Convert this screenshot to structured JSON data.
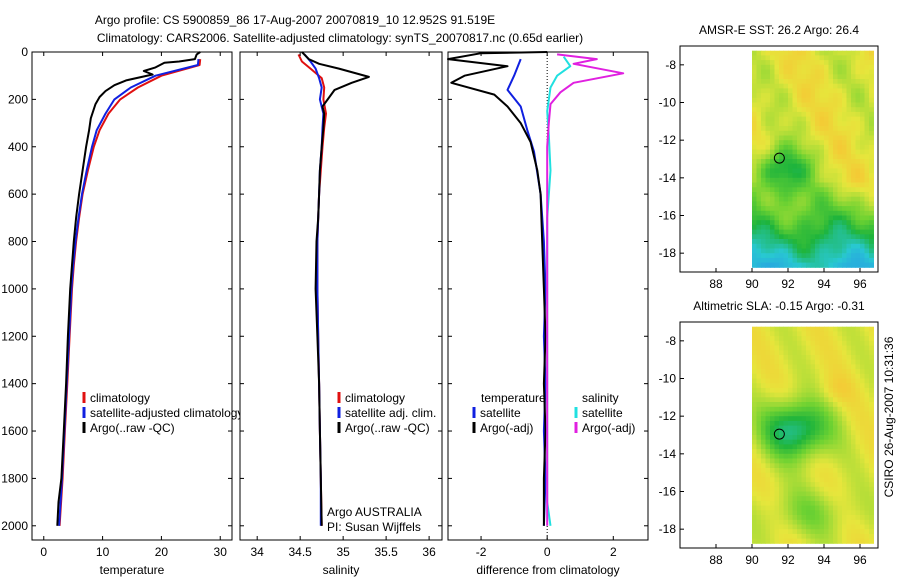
{
  "title": {
    "line1": "Argo profile: CS 5900859_86 17-Aug-2007 20070819_10 12.952S 91.519E",
    "line2": "Climatology: CARS2006. Satellite-adjusted climatology: synTS_20070817.nc (0.65d earlier)"
  },
  "footer_credit": "CSIRO 26-Aug-2007 10:31:36",
  "colors": {
    "red": "#e01010",
    "blue": "#1020e0",
    "black": "#000000",
    "cyan": "#20e0e0",
    "magenta": "#e020e0"
  },
  "chart_data": [
    {
      "type": "line",
      "name": "temperature",
      "xlabel": "temperature",
      "xlim": [
        -2,
        32
      ],
      "xticks": [
        0,
        10,
        20,
        30
      ],
      "ylim": [
        0,
        2060
      ],
      "yticks": [
        0,
        200,
        400,
        600,
        800,
        1000,
        1200,
        1400,
        1600,
        1800,
        2000
      ],
      "legend": [
        "climatology",
        "satellite-adjusted climatology",
        "Argo(..raw -QC)"
      ],
      "series": [
        {
          "name": "climatology",
          "color": "red",
          "points": [
            [
              26.6,
              30
            ],
            [
              26.5,
              55
            ],
            [
              20,
              100
            ],
            [
              16,
              150
            ],
            [
              13,
              200
            ],
            [
              11,
              260
            ],
            [
              9.5,
              330
            ],
            [
              8.5,
              400
            ],
            [
              7.5,
              500
            ],
            [
              6.6,
              600
            ],
            [
              6,
              700
            ],
            [
              5.5,
              800
            ],
            [
              5.1,
              900
            ],
            [
              4.8,
              1000
            ],
            [
              4.4,
              1200
            ],
            [
              4,
              1400
            ],
            [
              3.6,
              1600
            ],
            [
              3.2,
              1800
            ],
            [
              2.7,
              2000
            ]
          ]
        },
        {
          "name": "satellite-adjusted climatology",
          "color": "blue",
          "points": [
            [
              26.3,
              30
            ],
            [
              26.2,
              55
            ],
            [
              19,
              100
            ],
            [
              14.8,
              150
            ],
            [
              12,
              200
            ],
            [
              10.5,
              260
            ],
            [
              9,
              330
            ],
            [
              8.2,
              400
            ],
            [
              7.3,
              500
            ],
            [
              6.5,
              600
            ],
            [
              5.9,
              700
            ],
            [
              5.4,
              800
            ],
            [
              5,
              900
            ],
            [
              4.7,
              1000
            ],
            [
              4.3,
              1200
            ],
            [
              3.9,
              1400
            ],
            [
              3.5,
              1600
            ],
            [
              3.1,
              1800
            ],
            [
              2.6,
              2000
            ]
          ]
        },
        {
          "name": "Argo(..raw -QC)",
          "color": "black",
          "points": [
            [
              26.6,
              0
            ],
            [
              26,
              10
            ],
            [
              25.7,
              30
            ],
            [
              23,
              40
            ],
            [
              20.5,
              45
            ],
            [
              19,
              65
            ],
            [
              17,
              80
            ],
            [
              18.5,
              95
            ],
            [
              14,
              120
            ],
            [
              12,
              140
            ],
            [
              10.5,
              165
            ],
            [
              9.5,
              190
            ],
            [
              8.8,
              220
            ],
            [
              8,
              280
            ],
            [
              7.7,
              330
            ],
            [
              7.2,
              400
            ],
            [
              6.6,
              500
            ],
            [
              6,
              600
            ],
            [
              5.5,
              700
            ],
            [
              5.1,
              800
            ],
            [
              4.8,
              900
            ],
            [
              4.5,
              1000
            ],
            [
              4.1,
              1200
            ],
            [
              3.8,
              1400
            ],
            [
              3.4,
              1600
            ],
            [
              3,
              1800
            ],
            [
              2.5,
              1900
            ],
            [
              2.3,
              2000
            ]
          ]
        }
      ]
    },
    {
      "type": "line",
      "name": "salinity",
      "xlabel": "salinity",
      "xlim": [
        33.8,
        36.15
      ],
      "xticks": [
        34,
        34.5,
        35,
        35.5,
        36
      ],
      "ylim": [
        0,
        2060
      ],
      "legend": [
        "climatology",
        "satellite adj. clim.",
        "Argo(..raw -QC)"
      ],
      "annotations": [
        "Argo AUSTRALIA",
        "PI: Susan Wijffels"
      ],
      "series": [
        {
          "name": "climatology",
          "color": "red",
          "points": [
            [
              34.48,
              10
            ],
            [
              34.52,
              40
            ],
            [
              34.62,
              70
            ],
            [
              34.75,
              110
            ],
            [
              34.78,
              150
            ],
            [
              34.77,
              200
            ],
            [
              34.8,
              260
            ],
            [
              34.78,
              320
            ],
            [
              34.76,
              400
            ],
            [
              34.74,
              500
            ],
            [
              34.72,
              600
            ],
            [
              34.71,
              700
            ],
            [
              34.7,
              800
            ],
            [
              34.7,
              1000
            ],
            [
              34.71,
              1200
            ],
            [
              34.72,
              1400
            ],
            [
              34.73,
              1600
            ],
            [
              34.74,
              1800
            ],
            [
              34.75,
              2000
            ]
          ]
        },
        {
          "name": "satellite adj. clim.",
          "color": "blue",
          "points": [
            [
              34.55,
              10
            ],
            [
              34.62,
              40
            ],
            [
              34.68,
              70
            ],
            [
              34.72,
              110
            ],
            [
              34.75,
              150
            ],
            [
              34.73,
              200
            ],
            [
              34.77,
              260
            ],
            [
              34.76,
              320
            ],
            [
              34.75,
              400
            ],
            [
              34.73,
              500
            ],
            [
              34.72,
              600
            ],
            [
              34.71,
              700
            ],
            [
              34.7,
              800
            ],
            [
              34.7,
              1000
            ],
            [
              34.71,
              1200
            ],
            [
              34.72,
              1400
            ],
            [
              34.73,
              1600
            ],
            [
              34.74,
              1800
            ],
            [
              34.74,
              2000
            ]
          ]
        },
        {
          "name": "Argo(..raw -QC)",
          "color": "black",
          "points": [
            [
              34.52,
              0
            ],
            [
              34.6,
              30
            ],
            [
              34.72,
              50
            ],
            [
              34.95,
              70
            ],
            [
              35.3,
              105
            ],
            [
              35.1,
              130
            ],
            [
              34.9,
              160
            ],
            [
              34.82,
              200
            ],
            [
              34.76,
              230
            ],
            [
              34.78,
              260
            ],
            [
              34.77,
              320
            ],
            [
              34.75,
              400
            ],
            [
              34.73,
              500
            ],
            [
              34.72,
              600
            ],
            [
              34.71,
              700
            ],
            [
              34.69,
              800
            ],
            [
              34.68,
              1000
            ],
            [
              34.7,
              1200
            ],
            [
              34.72,
              1400
            ],
            [
              34.73,
              1600
            ],
            [
              34.74,
              1800
            ],
            [
              34.75,
              2000
            ]
          ]
        }
      ]
    },
    {
      "type": "line",
      "name": "difference",
      "xlabel": "difference from climatology",
      "xlim": [
        -3,
        3.05
      ],
      "xticks": [
        -2,
        0,
        2
      ],
      "ylim": [
        0,
        2060
      ],
      "legend_titles": [
        "temperature",
        "salinity"
      ],
      "legend": [
        "satellite",
        "Argo(-adj)",
        "satellite",
        "Argo(-adj)"
      ],
      "series": [
        {
          "name": "temperature satellite",
          "color": "blue",
          "points": [
            [
              -0.8,
              30
            ],
            [
              -1,
              100
            ],
            [
              -1.2,
              160
            ],
            [
              -0.8,
              230
            ],
            [
              -0.6,
              330
            ],
            [
              -0.4,
              420
            ],
            [
              -0.2,
              600
            ],
            [
              -0.1,
              800
            ],
            [
              -0.05,
              1000
            ],
            [
              -0.1,
              1200
            ],
            [
              -0.05,
              1400
            ],
            [
              -0.1,
              1600
            ],
            [
              -0.05,
              1800
            ],
            [
              -0.1,
              2000
            ]
          ]
        },
        {
          "name": "temperature Argo(-adj)",
          "color": "black",
          "points": [
            [
              0,
              0
            ],
            [
              -2,
              5
            ],
            [
              -3,
              30
            ],
            [
              -1.2,
              60
            ],
            [
              -2.5,
              100
            ],
            [
              -2.9,
              130
            ],
            [
              -1.6,
              180
            ],
            [
              -1.2,
              230
            ],
            [
              -0.8,
              300
            ],
            [
              -0.5,
              380
            ],
            [
              -0.3,
              500
            ],
            [
              -0.2,
              600
            ],
            [
              -0.15,
              800
            ],
            [
              -0.1,
              1000
            ],
            [
              -0.05,
              1200
            ],
            [
              -0.1,
              1400
            ],
            [
              -0.05,
              1600
            ],
            [
              -0.1,
              1800
            ],
            [
              -0.1,
              2000
            ]
          ]
        },
        {
          "name": "salinity satellite",
          "color": "cyan",
          "points": [
            [
              0.5,
              20
            ],
            [
              0.7,
              60
            ],
            [
              0.3,
              100
            ],
            [
              0.1,
              150
            ],
            [
              0,
              250
            ],
            [
              0.05,
              350
            ],
            [
              0.1,
              500
            ],
            [
              0,
              700
            ],
            [
              0,
              900
            ],
            [
              0,
              1100
            ],
            [
              0,
              1300
            ],
            [
              0,
              1500
            ],
            [
              0,
              1700
            ],
            [
              0,
              1900
            ],
            [
              0.1,
              2000
            ]
          ]
        },
        {
          "name": "salinity Argo(-adj)",
          "color": "magenta",
          "points": [
            [
              0.3,
              10
            ],
            [
              1.5,
              30
            ],
            [
              0.8,
              50
            ],
            [
              2.3,
              90
            ],
            [
              0.8,
              130
            ],
            [
              0.4,
              170
            ],
            [
              0.1,
              220
            ],
            [
              0.05,
              300
            ],
            [
              0,
              400
            ],
            [
              0,
              600
            ],
            [
              0,
              800
            ],
            [
              0,
              1000
            ],
            [
              0,
              1200
            ],
            [
              0,
              1400
            ],
            [
              0,
              1600
            ],
            [
              0,
              1800
            ],
            [
              0,
              2000
            ]
          ]
        }
      ]
    },
    {
      "type": "heatmap",
      "name": "sst-map",
      "title": "AMSR-E SST: 26.2 Argo: 26.4",
      "xlim": [
        86,
        97
      ],
      "ylim": [
        -19,
        -7
      ],
      "xticks": [
        88,
        90,
        92,
        94,
        96
      ],
      "yticks": [
        -8,
        -10,
        -12,
        -14,
        -16,
        -18
      ],
      "marker": {
        "lon": 91.519,
        "lat": -12.952
      }
    },
    {
      "type": "heatmap",
      "name": "sla-map",
      "title": "Altimetric SLA: -0.15 Argo: -0.31",
      "xlim": [
        86,
        97
      ],
      "ylim": [
        -19,
        -7
      ],
      "xticks": [
        88,
        90,
        92,
        94,
        96
      ],
      "yticks": [
        -8,
        -10,
        -12,
        -14,
        -16,
        -18
      ],
      "marker": {
        "lon": 91.519,
        "lat": -12.952
      }
    }
  ]
}
